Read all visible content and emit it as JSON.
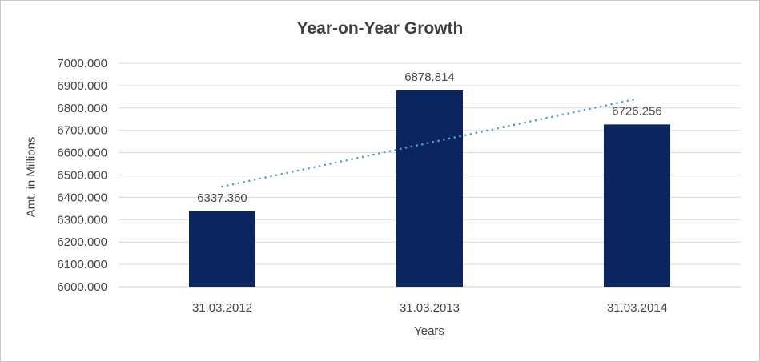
{
  "window": {
    "background": "#ffffff",
    "border_color": "#c9c9c9"
  },
  "chart_data": {
    "type": "bar",
    "title": "Year-on-Year Growth",
    "xlabel": "Years",
    "ylabel": "Amt. in Millions",
    "categories": [
      "31.03.2012",
      "31.03.2013",
      "31.03.2014"
    ],
    "values": [
      6337.36,
      6878.814,
      6726.256
    ],
    "value_labels": [
      "6337.360",
      "6878.814",
      "6726.256"
    ],
    "ylim": [
      6000,
      7000
    ],
    "ytick_step": 100,
    "ytick_labels": [
      "6000.000",
      "6100.000",
      "6200.000",
      "6300.000",
      "6400.000",
      "6500.000",
      "6600.000",
      "6700.000",
      "6800.000",
      "6900.000",
      "7000.000"
    ],
    "grid": true,
    "legend_position": "none",
    "trendline": {
      "type": "linear",
      "style": "dotted",
      "start_value": 6448,
      "end_value": 6841,
      "color": "#5b9bd5"
    },
    "colors": {
      "bar": "#0a2560",
      "gridline": "#d9d9d9",
      "axis_line": "#cfcfcf",
      "tick_label": "#444444",
      "data_label": "#484848",
      "title": "#3f3f3f",
      "axis_title": "#444444"
    }
  }
}
